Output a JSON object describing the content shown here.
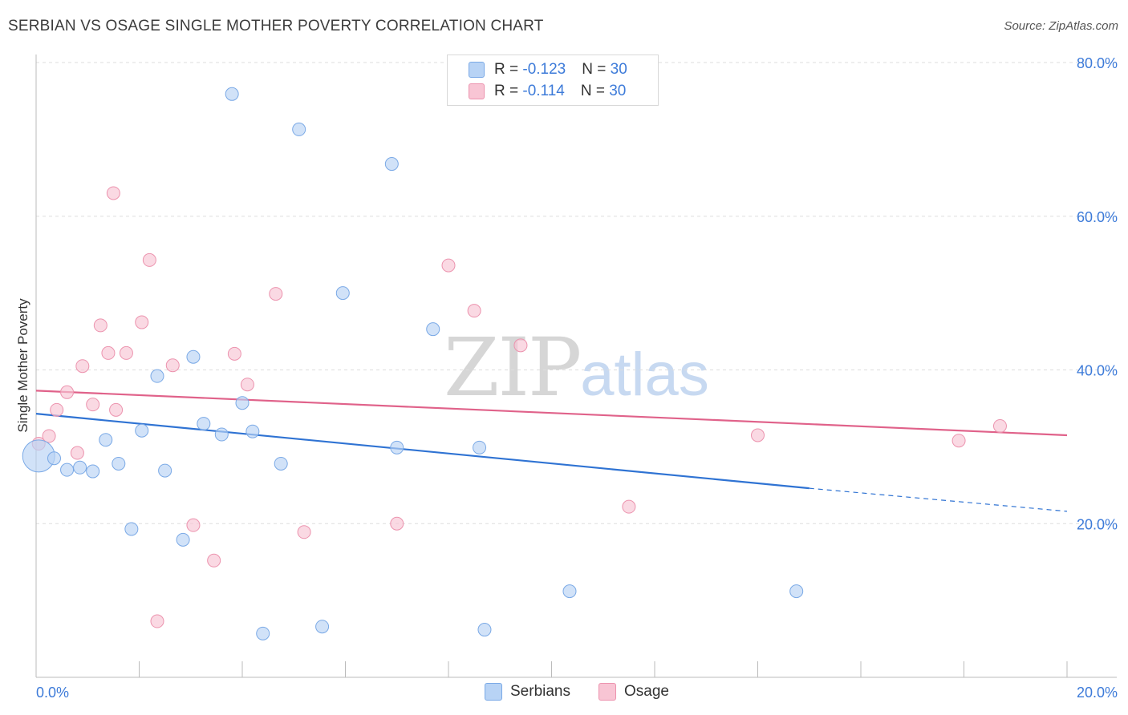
{
  "header": {
    "title": "SERBIAN VS OSAGE SINGLE MOTHER POVERTY CORRELATION CHART",
    "source": "Source: ZipAtlas.com"
  },
  "legend": {
    "rows": [
      {
        "r_label": "R = ",
        "r_value": "-0.123",
        "n_label": "N = ",
        "n_value": "30"
      },
      {
        "r_label": "R = ",
        "r_value": "-0.114",
        "n_label": "N = ",
        "n_value": "30"
      }
    ]
  },
  "watermark": {
    "zip": "ZIP",
    "atlas": "atlas"
  },
  "colors": {
    "serbians_fill": "#b8d3f5",
    "serbians_stroke": "#7aa9e6",
    "serbians_line": "#2f73d3",
    "osage_fill": "#f8c5d4",
    "osage_stroke": "#ec93ae",
    "osage_line": "#e0628a",
    "grid": "#dddddd",
    "tick_text": "#3d7bd9"
  },
  "chart_data": {
    "type": "scatter",
    "title": "SERBIAN VS OSAGE SINGLE MOTHER POVERTY CORRELATION CHART",
    "xlabel": "",
    "ylabel": "Single Mother Poverty",
    "xlim": [
      0,
      20
    ],
    "ylim": [
      0,
      80
    ],
    "x_tick_labels": [
      "0.0%",
      "20.0%"
    ],
    "y_ticks": [
      20,
      40,
      60,
      80
    ],
    "y_tick_labels": [
      "20.0%",
      "40.0%",
      "60.0%",
      "80.0%"
    ],
    "grid": true,
    "legend_position": "bottom",
    "series": [
      {
        "name": "Serbians",
        "r": -0.123,
        "n": 30,
        "trend": {
          "x0": 0,
          "y0": 34.3,
          "x1": 15.0,
          "y1": 24.6,
          "dashed_to_x": 20,
          "dashed_to_y": 21.6
        },
        "points": [
          {
            "x": 0.05,
            "y": 28.8,
            "big": true
          },
          {
            "x": 0.35,
            "y": 28.5
          },
          {
            "x": 0.6,
            "y": 27.0
          },
          {
            "x": 0.85,
            "y": 27.3
          },
          {
            "x": 1.1,
            "y": 26.8
          },
          {
            "x": 1.35,
            "y": 30.9
          },
          {
            "x": 1.6,
            "y": 27.8
          },
          {
            "x": 1.85,
            "y": 19.3
          },
          {
            "x": 2.05,
            "y": 32.1
          },
          {
            "x": 2.35,
            "y": 39.2
          },
          {
            "x": 2.5,
            "y": 26.9
          },
          {
            "x": 2.85,
            "y": 17.9
          },
          {
            "x": 3.05,
            "y": 41.7
          },
          {
            "x": 3.25,
            "y": 33.0
          },
          {
            "x": 3.6,
            "y": 31.6
          },
          {
            "x": 3.8,
            "y": 75.9
          },
          {
            "x": 4.0,
            "y": 35.7
          },
          {
            "x": 4.2,
            "y": 32.0
          },
          {
            "x": 4.4,
            "y": 5.7
          },
          {
            "x": 4.75,
            "y": 27.8
          },
          {
            "x": 5.1,
            "y": 71.3
          },
          {
            "x": 5.55,
            "y": 6.6
          },
          {
            "x": 5.95,
            "y": 50.0
          },
          {
            "x": 6.9,
            "y": 66.8
          },
          {
            "x": 7.0,
            "y": 29.9
          },
          {
            "x": 7.7,
            "y": 45.3
          },
          {
            "x": 8.6,
            "y": 29.9
          },
          {
            "x": 8.7,
            "y": 6.2
          },
          {
            "x": 10.35,
            "y": 11.2
          },
          {
            "x": 14.75,
            "y": 11.2
          }
        ]
      },
      {
        "name": "Osage",
        "r": -0.114,
        "n": 30,
        "trend": {
          "x0": 0,
          "y0": 37.3,
          "x1": 20,
          "y1": 31.5
        },
        "points": [
          {
            "x": 0.05,
            "y": 30.4
          },
          {
            "x": 0.25,
            "y": 31.4
          },
          {
            "x": 0.4,
            "y": 34.8
          },
          {
            "x": 0.6,
            "y": 37.1
          },
          {
            "x": 0.8,
            "y": 29.2
          },
          {
            "x": 0.9,
            "y": 40.5
          },
          {
            "x": 1.1,
            "y": 35.5
          },
          {
            "x": 1.25,
            "y": 45.8
          },
          {
            "x": 1.4,
            "y": 42.2
          },
          {
            "x": 1.5,
            "y": 63.0
          },
          {
            "x": 1.55,
            "y": 34.8
          },
          {
            "x": 1.75,
            "y": 42.2
          },
          {
            "x": 2.05,
            "y": 46.2
          },
          {
            "x": 2.2,
            "y": 54.3
          },
          {
            "x": 2.35,
            "y": 7.3
          },
          {
            "x": 2.65,
            "y": 40.6
          },
          {
            "x": 3.05,
            "y": 19.8
          },
          {
            "x": 3.45,
            "y": 15.2
          },
          {
            "x": 3.85,
            "y": 42.1
          },
          {
            "x": 4.1,
            "y": 38.1
          },
          {
            "x": 4.65,
            "y": 49.9
          },
          {
            "x": 5.2,
            "y": 18.9
          },
          {
            "x": 7.0,
            "y": 20.0
          },
          {
            "x": 8.0,
            "y": 53.6
          },
          {
            "x": 8.5,
            "y": 47.7
          },
          {
            "x": 9.4,
            "y": 43.2
          },
          {
            "x": 11.5,
            "y": 22.2
          },
          {
            "x": 14.0,
            "y": 31.5
          },
          {
            "x": 17.9,
            "y": 30.8
          },
          {
            "x": 18.7,
            "y": 32.7
          }
        ]
      }
    ]
  }
}
